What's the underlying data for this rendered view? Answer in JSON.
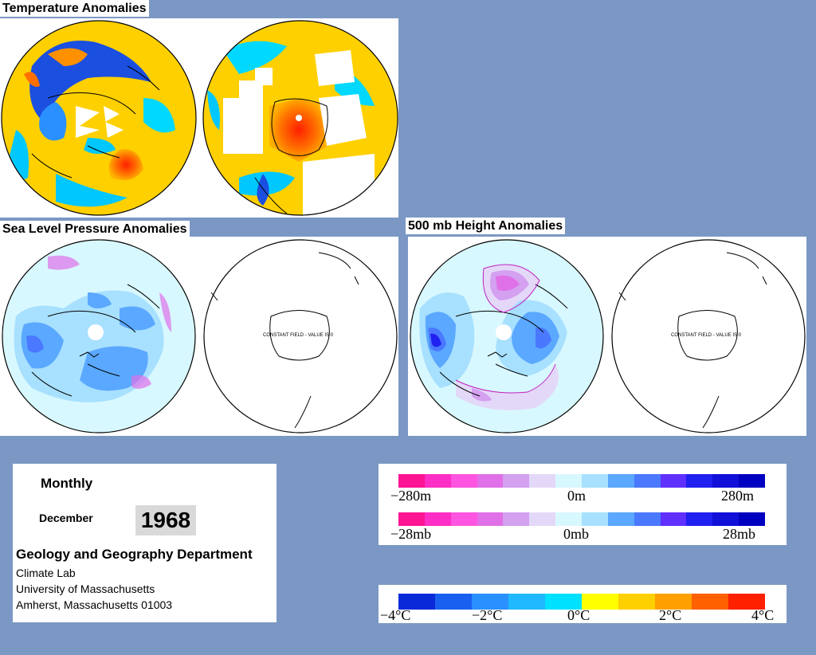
{
  "titles": {
    "temperature": "Temperature Anomalies",
    "slp": "Sea Level Pressure Anomalies",
    "height500": "500 mb Height Anomalies"
  },
  "constant_field_label": "CONSTANT FIELD - VALUE IS 0",
  "info": {
    "period": "Monthly",
    "month": "December",
    "year": "1968",
    "department": "Geology and Geography Department",
    "lab": "Climate Lab",
    "university": "University of Massachusetts",
    "address": "Amherst, Massachusetts 01003"
  },
  "legend_height": {
    "min": "−280m",
    "mid": "0m",
    "max": "280m",
    "colors": [
      "#ff1493",
      "#ff2ec4",
      "#ff55e0",
      "#e070e8",
      "#d4a0f0",
      "#e4d8f8",
      "#d8f8ff",
      "#a8e0ff",
      "#5aa8ff",
      "#4a78ff",
      "#6030ff",
      "#2020f0",
      "#1010d8",
      "#0000c0"
    ]
  },
  "legend_pressure": {
    "min": "−28mb",
    "mid": "0mb",
    "max": "28mb",
    "colors": [
      "#ff1493",
      "#ff2ec4",
      "#ff55e0",
      "#e070e8",
      "#d4a0f0",
      "#e4d8f8",
      "#d8f8ff",
      "#a8e0ff",
      "#5aa8ff",
      "#4a78ff",
      "#6030ff",
      "#2020f0",
      "#1010d8",
      "#0000c0"
    ]
  },
  "legend_temperature": {
    "ticks": [
      "−4°C",
      "−2°C",
      "0°C",
      "2°C",
      "4°C"
    ],
    "colors": [
      "#0a2ad8",
      "#1a60f0",
      "#2a90ff",
      "#20b8ff",
      "#00e0ff",
      "#ffff00",
      "#ffd000",
      "#ffa000",
      "#ff6000",
      "#ff2000"
    ]
  }
}
